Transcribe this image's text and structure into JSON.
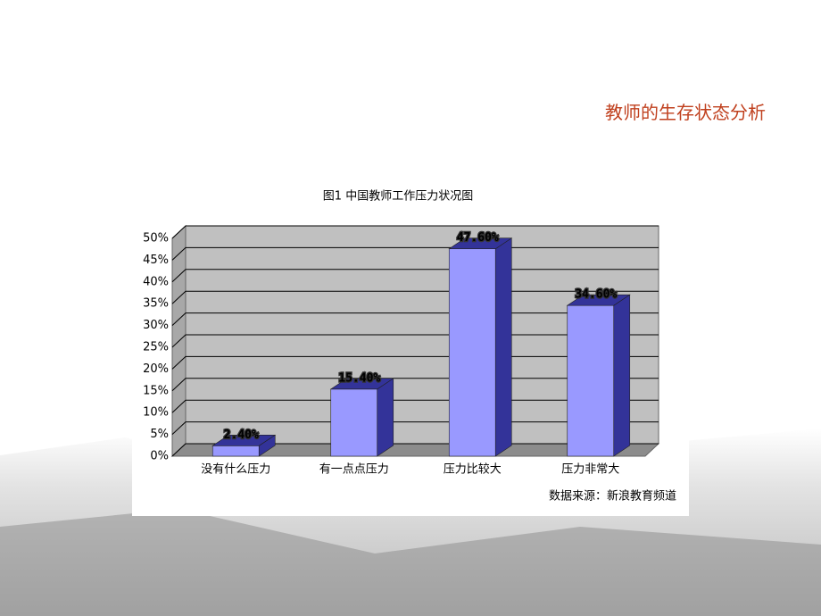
{
  "header": {
    "title": "教师的生存状态分析"
  },
  "chart_data": {
    "type": "bar3d",
    "title": "图1 中国教师工作压力状况图",
    "categories": [
      "没有什么压力",
      "有一点点压力",
      "压力比较大",
      "压力非常大"
    ],
    "values": [
      2.4,
      15.4,
      47.6,
      34.6
    ],
    "value_labels": [
      "2.40%",
      "15.40%",
      "47.60%",
      "34.60%"
    ],
    "color": "#9999ff",
    "side_color": "#333399",
    "ylim": [
      0,
      50
    ],
    "yticks": [
      {
        "value": 0,
        "label": "0%"
      },
      {
        "value": 5,
        "label": "5%"
      },
      {
        "value": 10,
        "label": "10%"
      },
      {
        "value": 15,
        "label": "15%"
      },
      {
        "value": 20,
        "label": "20%"
      },
      {
        "value": 25,
        "label": "25%"
      },
      {
        "value": 30,
        "label": "30%"
      },
      {
        "value": 35,
        "label": "35%"
      },
      {
        "value": 40,
        "label": "40%"
      },
      {
        "value": 45,
        "label": "45%"
      },
      {
        "value": 50,
        "label": "50%"
      }
    ],
    "grid": true,
    "source": "数据来源：新浪教育频道"
  }
}
